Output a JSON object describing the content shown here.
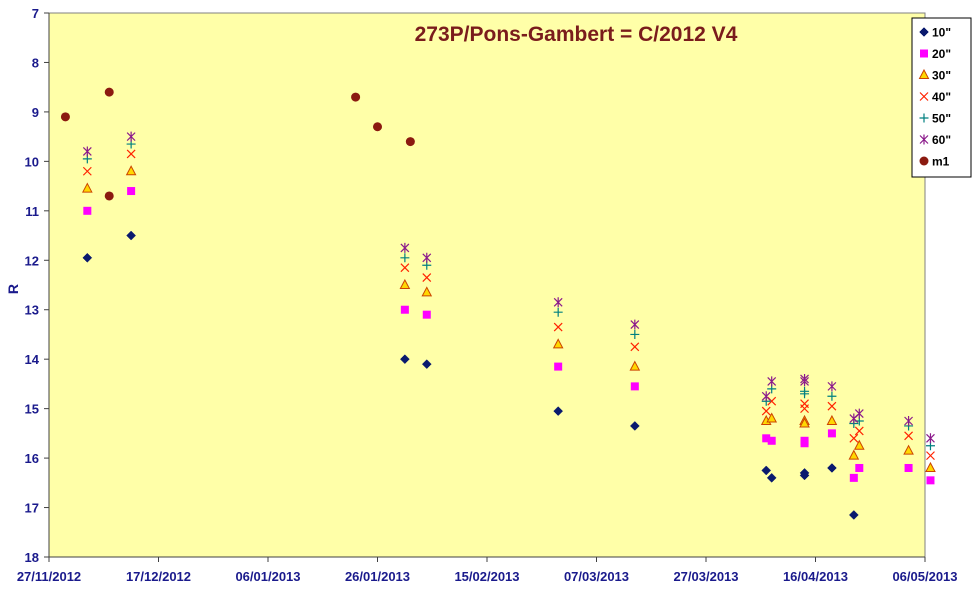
{
  "chart_data": {
    "type": "scatter",
    "title": "273P/Pons-Gambert = C/2012 V4",
    "xlabel": "",
    "ylabel": "R",
    "x_axis": {
      "type": "date",
      "range": [
        "2012-11-27",
        "2013-05-06"
      ],
      "tick_labels": [
        "27/11/2012",
        "17/12/2012",
        "06/01/2013",
        "26/01/2013",
        "15/02/2013",
        "07/03/2013",
        "27/03/2013",
        "16/04/2013",
        "06/05/2013"
      ]
    },
    "y_axis": {
      "range": [
        7,
        18
      ],
      "reversed": true,
      "tick_labels": [
        "7",
        "8",
        "9",
        "10",
        "11",
        "12",
        "13",
        "14",
        "15",
        "16",
        "17",
        "18"
      ]
    },
    "grid": false,
    "legend_position": "top-right",
    "colors": {
      "background": "#ffffa8",
      "axis_text": "#1a1a8c",
      "title": "#7a1c1c"
    },
    "series": [
      {
        "name": "10\"",
        "marker": "diamond",
        "color": "#0a1a6e",
        "points": [
          [
            "2012-12-04",
            11.95
          ],
          [
            "2012-12-12",
            11.5
          ],
          [
            "2013-01-31",
            14.0
          ],
          [
            "2013-02-04",
            14.1
          ],
          [
            "2013-02-28",
            15.05
          ],
          [
            "2013-03-14",
            15.35
          ],
          [
            "2013-04-07",
            16.25
          ],
          [
            "2013-04-08",
            16.4
          ],
          [
            "2013-04-14",
            16.3
          ],
          [
            "2013-04-14",
            16.35
          ],
          [
            "2013-04-19",
            16.2
          ],
          [
            "2013-04-23",
            17.15
          ]
        ]
      },
      {
        "name": "20\"",
        "marker": "square",
        "color": "#ff00ff",
        "points": [
          [
            "2012-12-04",
            11.0
          ],
          [
            "2012-12-12",
            10.6
          ],
          [
            "2013-01-31",
            13.0
          ],
          [
            "2013-02-04",
            13.1
          ],
          [
            "2013-02-28",
            14.15
          ],
          [
            "2013-03-14",
            14.55
          ],
          [
            "2013-04-07",
            15.6
          ],
          [
            "2013-04-08",
            15.65
          ],
          [
            "2013-04-14",
            15.65
          ],
          [
            "2013-04-14",
            15.7
          ],
          [
            "2013-04-19",
            15.5
          ],
          [
            "2013-04-23",
            16.4
          ],
          [
            "2013-04-24",
            16.2
          ],
          [
            "2013-05-03",
            16.2
          ],
          [
            "2013-05-07",
            16.45
          ]
        ]
      },
      {
        "name": "30\"",
        "marker": "triangle",
        "color": "#ffd700",
        "points": [
          [
            "2012-12-04",
            10.55
          ],
          [
            "2012-12-12",
            10.2
          ],
          [
            "2013-01-31",
            12.5
          ],
          [
            "2013-02-04",
            12.65
          ],
          [
            "2013-02-28",
            13.7
          ],
          [
            "2013-03-14",
            14.15
          ],
          [
            "2013-04-07",
            15.25
          ],
          [
            "2013-04-08",
            15.2
          ],
          [
            "2013-04-14",
            15.25
          ],
          [
            "2013-04-14",
            15.3
          ],
          [
            "2013-04-19",
            15.25
          ],
          [
            "2013-04-23",
            15.95
          ],
          [
            "2013-04-24",
            15.75
          ],
          [
            "2013-05-03",
            15.85
          ],
          [
            "2013-05-07",
            16.2
          ]
        ]
      },
      {
        "name": "40\"",
        "marker": "x",
        "color": "#ff2200",
        "points": [
          [
            "2012-12-04",
            10.2
          ],
          [
            "2012-12-12",
            9.85
          ],
          [
            "2013-01-31",
            12.15
          ],
          [
            "2013-02-04",
            12.35
          ],
          [
            "2013-02-28",
            13.35
          ],
          [
            "2013-03-14",
            13.75
          ],
          [
            "2013-04-07",
            15.05
          ],
          [
            "2013-04-08",
            14.85
          ],
          [
            "2013-04-14",
            14.9
          ],
          [
            "2013-04-14",
            15.0
          ],
          [
            "2013-04-19",
            14.95
          ],
          [
            "2013-04-23",
            15.6
          ],
          [
            "2013-04-24",
            15.45
          ],
          [
            "2013-05-03",
            15.55
          ],
          [
            "2013-05-07",
            15.95
          ]
        ]
      },
      {
        "name": "50\"",
        "marker": "plus",
        "color": "#008080",
        "points": [
          [
            "2012-12-04",
            9.95
          ],
          [
            "2012-12-12",
            9.65
          ],
          [
            "2013-01-31",
            11.95
          ],
          [
            "2013-02-04",
            12.1
          ],
          [
            "2013-02-28",
            13.05
          ],
          [
            "2013-03-14",
            13.5
          ],
          [
            "2013-04-07",
            14.85
          ],
          [
            "2013-04-08",
            14.6
          ],
          [
            "2013-04-14",
            14.65
          ],
          [
            "2013-04-14",
            14.7
          ],
          [
            "2013-04-19",
            14.75
          ],
          [
            "2013-04-23",
            15.3
          ],
          [
            "2013-04-24",
            15.25
          ],
          [
            "2013-05-03",
            15.35
          ],
          [
            "2013-05-07",
            15.75
          ]
        ]
      },
      {
        "name": "60\"",
        "marker": "star",
        "color": "#8b1a8b",
        "points": [
          [
            "2012-12-04",
            9.8
          ],
          [
            "2012-12-12",
            9.5
          ],
          [
            "2013-01-31",
            11.75
          ],
          [
            "2013-02-04",
            11.95
          ],
          [
            "2013-02-28",
            12.85
          ],
          [
            "2013-03-14",
            13.3
          ],
          [
            "2013-04-07",
            14.75
          ],
          [
            "2013-04-08",
            14.45
          ],
          [
            "2013-04-14",
            14.4
          ],
          [
            "2013-04-14",
            14.45
          ],
          [
            "2013-04-19",
            14.55
          ],
          [
            "2013-04-23",
            15.2
          ],
          [
            "2013-04-24",
            15.1
          ],
          [
            "2013-05-03",
            15.25
          ],
          [
            "2013-05-07",
            15.6
          ]
        ]
      },
      {
        "name": "m1",
        "marker": "circle",
        "color": "#8b1a10",
        "points": [
          [
            "2012-11-30",
            9.1
          ],
          [
            "2012-12-08",
            8.6
          ],
          [
            "2012-12-08",
            10.7
          ],
          [
            "2013-01-22",
            8.7
          ],
          [
            "2013-01-26",
            9.3
          ],
          [
            "2013-02-01",
            9.6
          ]
        ]
      }
    ]
  }
}
